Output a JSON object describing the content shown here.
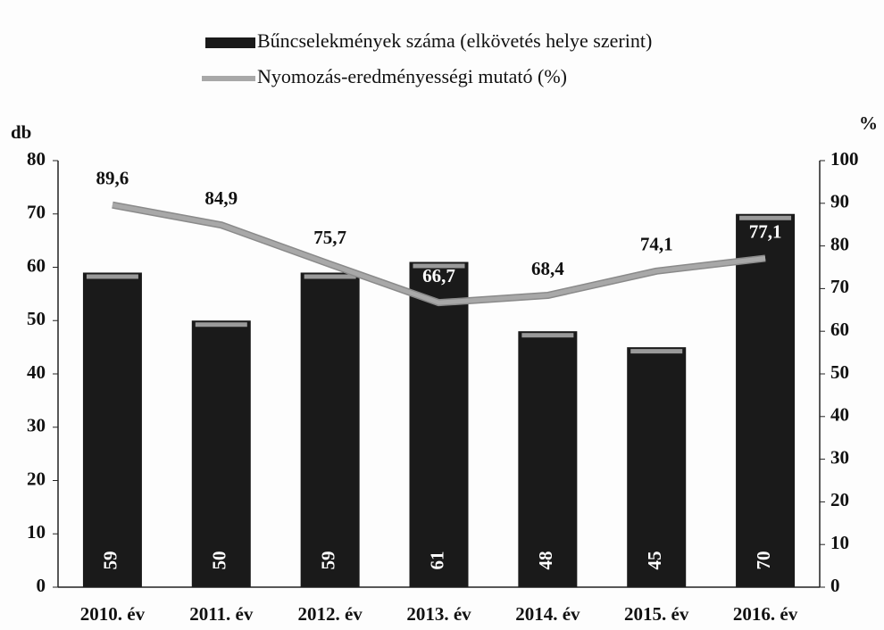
{
  "chart_data": {
    "type": "bar",
    "categories": [
      "2010. év",
      "2011. év",
      "2012. év",
      "2013. év",
      "2014. év",
      "2015. év",
      "2016. év"
    ],
    "series": [
      {
        "name": "Bűncselekmények száma (elkövetés helye szerint)",
        "color": "#1a1a1a",
        "type": "bar",
        "values": [
          59,
          50,
          59,
          61,
          48,
          45,
          70
        ]
      },
      {
        "name": "Nyomozás-eredményességi mutató (%)",
        "color": "#a8a8a8",
        "type": "line",
        "axis": "y2",
        "values": [
          89.6,
          84.9,
          75.7,
          66.7,
          68.4,
          74.1,
          77.1
        ],
        "value_labels": [
          "89,6",
          "84,9",
          "75,7",
          "66,7",
          "68,4",
          "74,1",
          "77,1"
        ]
      }
    ],
    "ylabel": "db",
    "y2label": "%",
    "ylim": [
      0,
      80
    ],
    "yticks": [
      0,
      10,
      20,
      30,
      40,
      50,
      60,
      70,
      80
    ],
    "y2lim": [
      0,
      100
    ],
    "y2ticks": [
      0,
      10,
      20,
      30,
      40,
      50,
      60,
      70,
      80,
      90,
      100
    ],
    "legend": "top"
  }
}
